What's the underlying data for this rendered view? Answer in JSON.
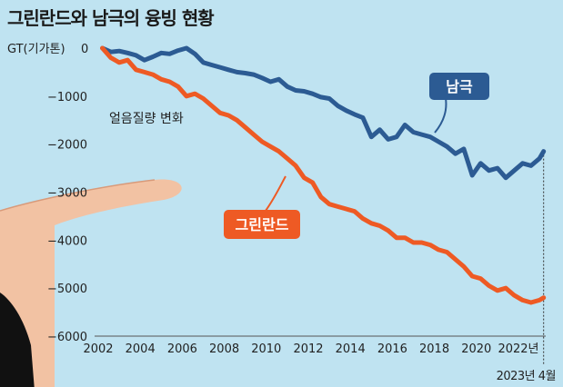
{
  "header": {
    "title": "그린란드와 남극의 융빙 현황"
  },
  "footer": {
    "date_note": "2023년 4월"
  },
  "colors": {
    "background": "#bfe3f1",
    "antarctica": "#2c5b93",
    "greenland": "#ee5a24",
    "text": "#222222"
  },
  "chart_data": {
    "type": "line",
    "title": "그린란드와 남극의 융빙 현황",
    "ylabel": "GT(기가톤)",
    "annotation": "얼음질량 변화",
    "ylim": [
      -6000,
      0
    ],
    "xlim": [
      2002,
      2023.3
    ],
    "y_ticks": [
      0,
      -1000,
      -2000,
      -3000,
      -4000,
      -5000,
      -6000
    ],
    "y_tick_labels": [
      "0",
      "−1000",
      "−2000",
      "−3000",
      "−4000",
      "−5000",
      "−6000"
    ],
    "x_ticks": [
      2002,
      2004,
      2006,
      2008,
      2010,
      2012,
      2014,
      2016,
      2018,
      2020,
      2022
    ],
    "x_tick_labels": [
      "2002",
      "2004",
      "2006",
      "2008",
      "2010",
      "2012",
      "2014",
      "2016",
      "2018",
      "2020",
      "2022년"
    ],
    "grid": false,
    "series": [
      {
        "name": "남극",
        "x": [
          2002.2,
          2002.6,
          2003.0,
          2003.4,
          2003.8,
          2004.2,
          2004.6,
          2005.0,
          2005.4,
          2005.8,
          2006.2,
          2006.6,
          2007.0,
          2007.4,
          2007.8,
          2008.2,
          2008.6,
          2009.0,
          2009.4,
          2009.8,
          2010.2,
          2010.6,
          2011.0,
          2011.4,
          2011.8,
          2012.2,
          2012.6,
          2013.0,
          2013.4,
          2013.8,
          2014.2,
          2014.6,
          2015.0,
          2015.4,
          2015.8,
          2016.2,
          2016.6,
          2017.0,
          2017.4,
          2017.8,
          2018.2,
          2018.6,
          2019.0,
          2019.4,
          2019.8,
          2020.2,
          2020.6,
          2021.0,
          2021.4,
          2021.8,
          2022.2,
          2022.6,
          2023.0,
          2023.2
        ],
        "values": [
          0,
          -80,
          -60,
          -100,
          -150,
          -250,
          -180,
          -100,
          -120,
          -50,
          0,
          -120,
          -300,
          -350,
          -400,
          -450,
          -500,
          -520,
          -550,
          -620,
          -700,
          -650,
          -800,
          -880,
          -900,
          -950,
          -1020,
          -1050,
          -1200,
          -1300,
          -1380,
          -1450,
          -1850,
          -1700,
          -1900,
          -1850,
          -1600,
          -1750,
          -1800,
          -1850,
          -1950,
          -2050,
          -2200,
          -2100,
          -2650,
          -2400,
          -2550,
          -2500,
          -2700,
          -2550,
          -2400,
          -2450,
          -2300,
          -2150
        ]
      },
      {
        "name": "그린란드",
        "x": [
          2002.2,
          2002.6,
          2003.0,
          2003.4,
          2003.8,
          2004.2,
          2004.6,
          2005.0,
          2005.4,
          2005.8,
          2006.2,
          2006.6,
          2007.0,
          2007.4,
          2007.8,
          2008.2,
          2008.6,
          2009.0,
          2009.4,
          2009.8,
          2010.2,
          2010.6,
          2011.0,
          2011.4,
          2011.8,
          2012.2,
          2012.6,
          2013.0,
          2013.4,
          2013.8,
          2014.2,
          2014.6,
          2015.0,
          2015.4,
          2015.8,
          2016.2,
          2016.6,
          2017.0,
          2017.4,
          2017.8,
          2018.2,
          2018.6,
          2019.0,
          2019.4,
          2019.8,
          2020.2,
          2020.6,
          2021.0,
          2021.4,
          2021.8,
          2022.2,
          2022.6,
          2023.0,
          2023.2
        ],
        "values": [
          0,
          -200,
          -300,
          -250,
          -450,
          -500,
          -550,
          -650,
          -700,
          -800,
          -1000,
          -950,
          -1050,
          -1200,
          -1350,
          -1400,
          -1500,
          -1650,
          -1800,
          -1950,
          -2050,
          -2150,
          -2300,
          -2450,
          -2700,
          -2800,
          -3100,
          -3250,
          -3300,
          -3350,
          -3400,
          -3550,
          -3650,
          -3700,
          -3800,
          -3950,
          -3950,
          -4050,
          -4050,
          -4100,
          -4200,
          -4250,
          -4400,
          -4550,
          -4750,
          -4800,
          -4950,
          -5050,
          -5000,
          -5150,
          -5250,
          -5300,
          -5250,
          -5200
        ]
      }
    ]
  }
}
